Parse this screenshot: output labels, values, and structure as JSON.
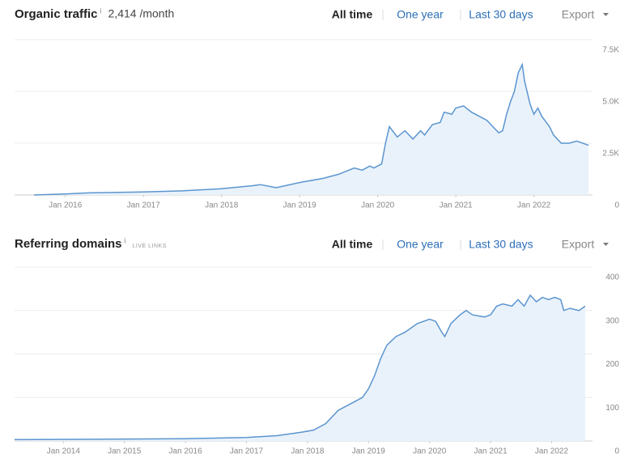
{
  "chart_data": [
    {
      "type": "area",
      "title": "Organic traffic",
      "info": "i",
      "subtitle": "2,414 /month",
      "buttons": [
        "All time",
        "One year",
        "Last 30 days",
        "Export"
      ],
      "x": [
        2015.6,
        2016.0,
        2016.3,
        2017.0,
        2017.5,
        2018.0,
        2018.4,
        2018.5,
        2018.7,
        2019.0,
        2019.3,
        2019.5,
        2019.7,
        2019.8,
        2019.9,
        2019.95,
        2020.05,
        2020.1,
        2020.15,
        2020.25,
        2020.35,
        2020.45,
        2020.55,
        2020.6,
        2020.7,
        2020.8,
        2020.85,
        2020.95,
        2021.0,
        2021.1,
        2021.2,
        2021.3,
        2021.4,
        2021.5,
        2021.55,
        2021.6,
        2021.65,
        2021.7,
        2021.75,
        2021.8,
        2021.85,
        2021.88,
        2021.95,
        2022.0,
        2022.05,
        2022.1,
        2022.2,
        2022.25,
        2022.35,
        2022.45,
        2022.55,
        2022.7
      ],
      "values": [
        0,
        50,
        100,
        150,
        200,
        300,
        450,
        500,
        350,
        600,
        800,
        1000,
        1300,
        1200,
        1400,
        1300,
        1500,
        2500,
        3300,
        2800,
        3100,
        2700,
        3100,
        2900,
        3400,
        3500,
        4000,
        3900,
        4200,
        4300,
        4000,
        3800,
        3600,
        3200,
        3000,
        3100,
        3900,
        4500,
        5000,
        5900,
        6300,
        5500,
        4400,
        3900,
        4200,
        3800,
        3300,
        2900,
        2500,
        2500,
        2600,
        2400
      ],
      "xlim": [
        2015.35,
        2022.75
      ],
      "ylim": [
        0,
        7500
      ],
      "xticks": [
        {
          "value": 2016,
          "label": "Jan 2016"
        },
        {
          "value": 2017,
          "label": "Jan 2017"
        },
        {
          "value": 2018,
          "label": "Jan 2018"
        },
        {
          "value": 2019,
          "label": "Jan 2019"
        },
        {
          "value": 2020,
          "label": "Jan 2020"
        },
        {
          "value": 2021,
          "label": "Jan 2021"
        },
        {
          "value": 2022,
          "label": "Jan 2022"
        }
      ],
      "yticks": [
        0,
        {
          "value": 2500,
          "label": "2.5K"
        },
        {
          "value": 5000,
          "label": "5.0K"
        },
        {
          "value": 7500,
          "label": "7.5K"
        }
      ],
      "color": "#5b95cf",
      "fill": "#e9f2fb",
      "grid": true
    },
    {
      "type": "area",
      "title": "Referring domains",
      "info": "i",
      "subtitle": "LIVE LINKS",
      "buttons": [
        "All time",
        "One year",
        "Last 30 days",
        "Export"
      ],
      "x": [
        2013.2,
        2016.0,
        2017.0,
        2017.5,
        2017.9,
        2018.1,
        2018.3,
        2018.5,
        2018.7,
        2018.9,
        2019.0,
        2019.1,
        2019.2,
        2019.3,
        2019.45,
        2019.6,
        2019.8,
        2020.0,
        2020.1,
        2020.2,
        2020.25,
        2020.35,
        2020.5,
        2020.6,
        2020.7,
        2020.9,
        2021.0,
        2021.1,
        2021.2,
        2021.35,
        2021.45,
        2021.55,
        2021.65,
        2021.75,
        2021.85,
        2021.95,
        2022.05,
        2022.15,
        2022.2,
        2022.3,
        2022.45,
        2022.55
      ],
      "values": [
        3,
        5,
        8,
        12,
        20,
        25,
        40,
        70,
        85,
        100,
        120,
        150,
        190,
        220,
        240,
        250,
        270,
        280,
        275,
        250,
        240,
        270,
        290,
        300,
        290,
        285,
        290,
        310,
        315,
        310,
        325,
        310,
        335,
        320,
        330,
        325,
        330,
        325,
        300,
        305,
        300,
        310
      ],
      "xlim": [
        2013.2,
        2022.67
      ],
      "ylim": [
        0,
        400
      ],
      "xticks": [
        {
          "value": 2014,
          "label": "Jan 2014"
        },
        {
          "value": 2015,
          "label": "Jan 2015"
        },
        {
          "value": 2016,
          "label": "Jan 2016"
        },
        {
          "value": 2017,
          "label": "Jan 2017"
        },
        {
          "value": 2018,
          "label": "Jan 2018"
        },
        {
          "value": 2019,
          "label": "Jan 2019"
        },
        {
          "value": 2020,
          "label": "Jan 2020"
        },
        {
          "value": 2021,
          "label": "Jan 2021"
        },
        {
          "value": 2022,
          "label": "Jan 2022"
        }
      ],
      "yticks": [
        0,
        100,
        200,
        300,
        400
      ],
      "color": "#5b95cf",
      "fill": "#e9f2fb",
      "grid": true
    }
  ]
}
